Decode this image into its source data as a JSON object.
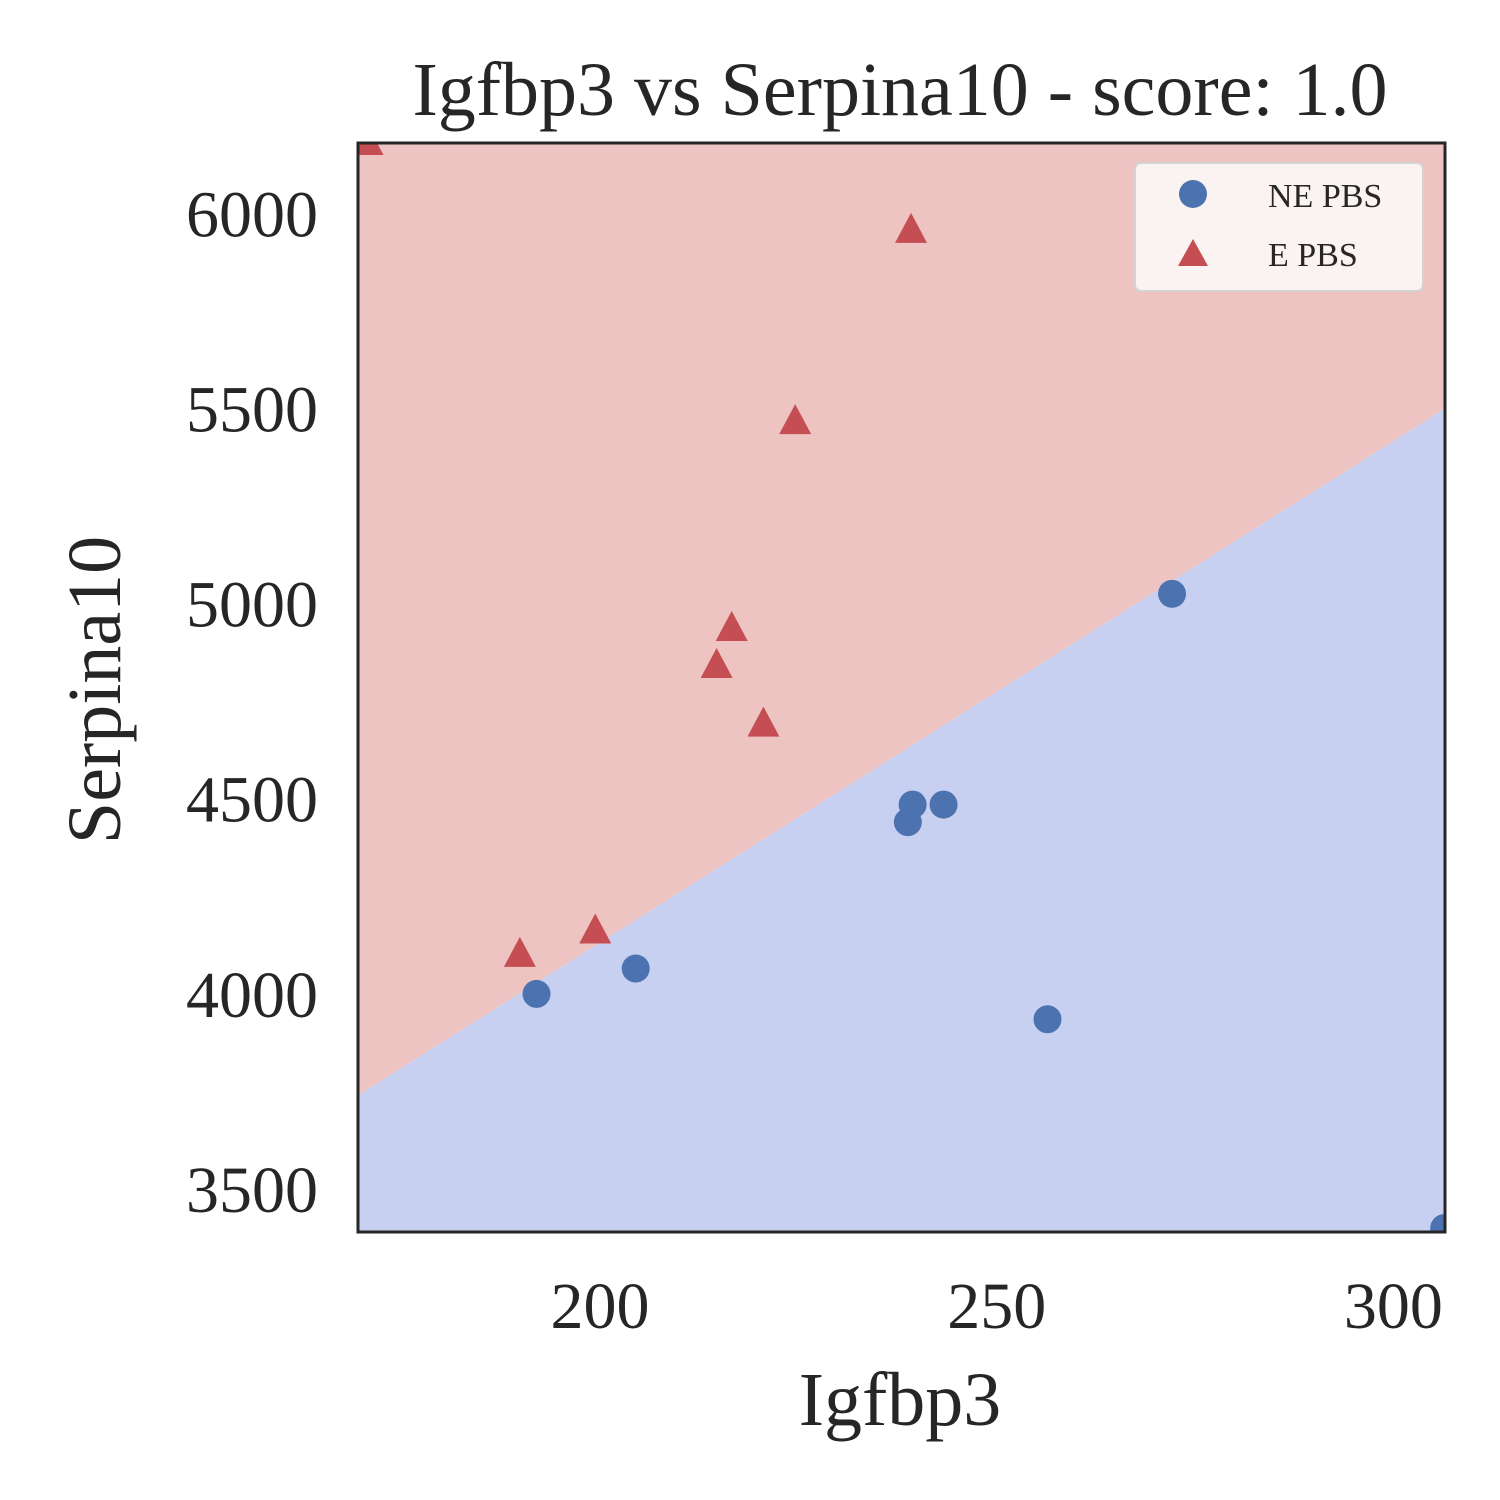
{
  "chart_data": {
    "type": "scatter",
    "title": "Igfbp3 vs Serpina10 - score: 1.0",
    "xlabel": "Igfbp3",
    "ylabel": "Serpina10",
    "xlim": [
      169.5,
      306.5
    ],
    "ylim": [
      3390,
      6180
    ],
    "xticks": [
      200,
      250,
      300
    ],
    "yticks": [
      3500,
      4000,
      4500,
      5000,
      5500,
      6000
    ],
    "xtick_labels": [
      "200",
      "250",
      "300"
    ],
    "ytick_labels": [
      "3500",
      "4000",
      "4500",
      "5000",
      "5500",
      "6000"
    ],
    "grid": false,
    "legend_position": "top-right",
    "decision_boundary": {
      "points": [
        [
          169.5,
          3740
        ],
        [
          306.5,
          5500
        ]
      ],
      "above_region": {
        "class": "E PBS",
        "color": "#eec4c2"
      },
      "below_region": {
        "class": "NE PBS",
        "color": "#c8d0f1"
      }
    },
    "series": [
      {
        "name": "NE PBS",
        "marker": "circle",
        "color": "#4c72b0",
        "points": [
          [
            192,
            4000
          ],
          [
            204.5,
            4065
          ],
          [
            238.8,
            4440
          ],
          [
            239.4,
            4485
          ],
          [
            243.3,
            4485
          ],
          [
            256.4,
            3935
          ],
          [
            272.1,
            5025
          ],
          [
            306.4,
            3400
          ]
        ]
      },
      {
        "name": "E PBS",
        "marker": "triangle",
        "color": "#c44e52",
        "points": [
          [
            170.7,
            6180
          ],
          [
            189.9,
            4100
          ],
          [
            199.4,
            4160
          ],
          [
            214.7,
            4840
          ],
          [
            216.6,
            4935
          ],
          [
            220.6,
            4690
          ],
          [
            224.6,
            5465
          ],
          [
            239.2,
            5955
          ]
        ]
      }
    ]
  }
}
